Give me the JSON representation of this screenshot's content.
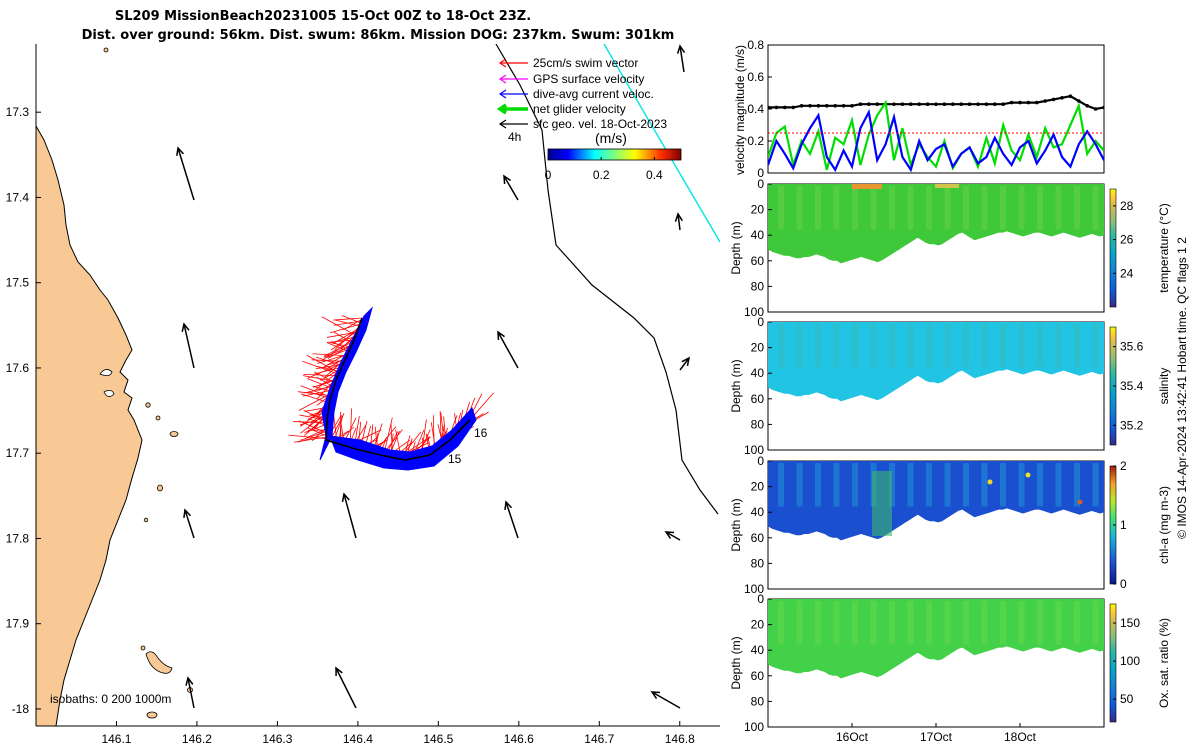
{
  "header": {
    "line1": "SL209 MissionBeach20231005 15-Oct 00Z to 18-Oct 23Z.",
    "line2": "Dist. over ground: 56km. Dist. swum: 86km. Mission DOG: 237km. Swum: 301km"
  },
  "credit": "© IMOS 14-Apr-2024 13:42:41 Hobart time. QC flags 1  2",
  "colors": {
    "land": "#f8c995",
    "swim": "#ff0000",
    "gps": "#ff00ff",
    "diveavg": "#0000ff",
    "net": "#00dd00",
    "sfcgeo": "#000000",
    "track_cyan": "#00e5e5"
  },
  "map": {
    "legend": [
      {
        "key": "swim",
        "label": "25cm/s swim vector"
      },
      {
        "key": "gps",
        "label": "GPS surface velocity"
      },
      {
        "key": "diveavg",
        "label": "dive-avg current veloc."
      },
      {
        "key": "net",
        "label": "net glider velocity"
      },
      {
        "key": "sfcgeo",
        "label": "sfc geo. vel. 18-Oct-2023"
      }
    ],
    "colorbar_title": "(m/s)",
    "colorbar_ticks": [
      "0",
      "0.2",
      "0.4"
    ],
    "colorbar_range": [
      0,
      0.5
    ],
    "time_label": "4h",
    "isobaths_label": "isobaths: 0   200  1000m",
    "day_labels": [
      "15",
      "16"
    ],
    "x_ticks": [
      "146.1",
      "146.2",
      "146.3",
      "146.4",
      "146.5",
      "146.6",
      "146.7",
      "146.8"
    ],
    "y_ticks": [
      "17.3",
      "17.4",
      "17.5",
      "17.6",
      "17.7",
      "17.8",
      "17.9",
      "-18"
    ],
    "xlim": [
      146.0,
      146.85
    ],
    "ylim": [
      -17.22,
      -18.02
    ]
  },
  "chart_data": [
    {
      "type": "line",
      "title": "",
      "xlabel": "",
      "ylabel": "velocity magnitude (m/s)",
      "xlim": [
        15.0,
        19.0
      ],
      "ylim": [
        0,
        0.8
      ],
      "y_ticks": [
        "0",
        "0.2",
        "0.4",
        "0.6",
        "0.8"
      ],
      "x": [
        15.0,
        15.1,
        15.2,
        15.3,
        15.4,
        15.5,
        15.6,
        15.7,
        15.8,
        15.9,
        16.0,
        16.1,
        16.2,
        16.3,
        16.4,
        16.5,
        16.6,
        16.7,
        16.8,
        16.9,
        17.0,
        17.1,
        17.2,
        17.3,
        17.4,
        17.5,
        17.6,
        17.7,
        17.8,
        17.9,
        18.0,
        18.1,
        18.2,
        18.3,
        18.4,
        18.5,
        18.6,
        18.7,
        18.8,
        18.9,
        19.0
      ],
      "series": [
        {
          "key": "sfcgeo",
          "values": [
            0.41,
            0.41,
            0.41,
            0.41,
            0.42,
            0.42,
            0.42,
            0.42,
            0.42,
            0.42,
            0.42,
            0.43,
            0.43,
            0.43,
            0.43,
            0.43,
            0.43,
            0.43,
            0.43,
            0.43,
            0.43,
            0.43,
            0.43,
            0.43,
            0.43,
            0.43,
            0.43,
            0.43,
            0.43,
            0.44,
            0.44,
            0.44,
            0.44,
            0.45,
            0.46,
            0.47,
            0.48,
            0.45,
            0.42,
            0.4,
            0.41
          ]
        },
        {
          "key": "net",
          "values": [
            0.1,
            0.25,
            0.29,
            0.05,
            0.2,
            0.12,
            0.26,
            0.02,
            0.22,
            0.18,
            0.33,
            0.05,
            0.24,
            0.36,
            0.44,
            0.08,
            0.28,
            0.05,
            0.18,
            0.1,
            0.04,
            0.2,
            0.03,
            0.12,
            0.16,
            0.04,
            0.22,
            0.06,
            0.3,
            0.14,
            0.08,
            0.24,
            0.1,
            0.28,
            0.16,
            0.18,
            0.3,
            0.42,
            0.12,
            0.2,
            0.14
          ]
        },
        {
          "key": "diveavg",
          "values": [
            0.05,
            0.2,
            0.12,
            0.03,
            0.18,
            0.28,
            0.36,
            0.1,
            0.02,
            0.14,
            0.04,
            0.28,
            0.38,
            0.08,
            0.18,
            0.35,
            0.1,
            0.02,
            0.2,
            0.08,
            0.15,
            0.18,
            0.04,
            0.12,
            0.16,
            0.06,
            0.1,
            0.22,
            0.12,
            0.05,
            0.16,
            0.2,
            0.06,
            0.14,
            0.24,
            0.1,
            0.04,
            0.18,
            0.26,
            0.18,
            0.08
          ]
        },
        {
          "key": "swim",
          "values": [
            0.25,
            0.25,
            0.25,
            0.25,
            0.25,
            0.25,
            0.25,
            0.25,
            0.25,
            0.25,
            0.25,
            0.25,
            0.25,
            0.25,
            0.25,
            0.25,
            0.25,
            0.25,
            0.25,
            0.25,
            0.25,
            0.25,
            0.25,
            0.25,
            0.25,
            0.25,
            0.25,
            0.25,
            0.25,
            0.25,
            0.25,
            0.25,
            0.25,
            0.25,
            0.25,
            0.25,
            0.25,
            0.25,
            0.25,
            0.25,
            0.25
          ]
        }
      ]
    },
    {
      "type": "heatmap",
      "title": "",
      "xlabel": "",
      "ylabel": "Depth (m)",
      "colorbar_label": "temperature (°C)",
      "colorbar_ticks": [
        "24",
        "26",
        "28"
      ],
      "colorbar_range": [
        22,
        29
      ],
      "ylim": [
        0,
        100
      ],
      "y_ticks": [
        "0",
        "20",
        "40",
        "60",
        "80",
        "100"
      ],
      "colormap": "parula"
    },
    {
      "type": "heatmap",
      "title": "",
      "xlabel": "",
      "ylabel": "Depth (m)",
      "colorbar_label": "salinity",
      "colorbar_ticks": [
        "35.2",
        "35.4",
        "35.6"
      ],
      "colorbar_range": [
        35.1,
        35.7
      ],
      "ylim": [
        0,
        100
      ],
      "y_ticks": [
        "0",
        "20",
        "40",
        "60",
        "80",
        "100"
      ],
      "colormap": "parula"
    },
    {
      "type": "heatmap",
      "title": "",
      "xlabel": "",
      "ylabel": "Depth (m)",
      "colorbar_label": "chl-a (mg m-3)",
      "colorbar_ticks": [
        "0",
        "1",
        "2"
      ],
      "colorbar_range": [
        0,
        2
      ],
      "ylim": [
        0,
        100
      ],
      "y_ticks": [
        "0",
        "20",
        "40",
        "60",
        "80",
        "100"
      ],
      "colormap": "parula"
    },
    {
      "type": "heatmap",
      "title": "",
      "xlabel": "",
      "ylabel": "Depth (m)",
      "colorbar_label": "Ox. sat. ratio (%)",
      "colorbar_ticks": [
        "50",
        "100",
        "150"
      ],
      "colorbar_range": [
        20,
        175
      ],
      "ylim": [
        0,
        100
      ],
      "y_ticks": [
        "0",
        "20",
        "40",
        "60",
        "80",
        "100"
      ],
      "x_ticks": [
        "16Oct",
        "17Oct",
        "18Oct"
      ],
      "xlim": [
        15.0,
        19.0
      ],
      "colormap": "parula"
    }
  ]
}
